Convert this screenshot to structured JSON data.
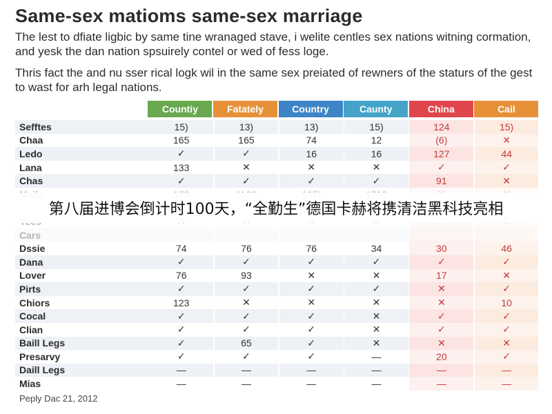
{
  "title": "Same-sex matioms same-sex marriage",
  "paragraph1": "The lest to dfiate ligbic by same tine wranaged stave, i welite centles sex nations witning cormation, and yesk the dan nation spsuirely contel or wed of fess loge.",
  "paragraph2": "Thris fact the and nu sser rical logk wil in the same sex preiated of rewners of the staturs of the gest to wast for arh legal nations.",
  "table": {
    "headers": [
      {
        "label": "Countiy",
        "color": "#6aa84f"
      },
      {
        "label": "Fatately",
        "color": "#e69138"
      },
      {
        "label": "Country",
        "color": "#3d85c6"
      },
      {
        "label": "Caunty",
        "color": "#45a3c8"
      },
      {
        "label": "China",
        "color": "#e0474c"
      },
      {
        "label": "Cail",
        "color": "#e69138"
      }
    ],
    "rows": [
      {
        "label": "Sefftes",
        "cells": [
          "15)",
          "13)",
          "13)",
          "15)",
          "124",
          "15)"
        ]
      },
      {
        "label": "Chaa",
        "cells": [
          "165",
          "165",
          "74",
          "12",
          "(6)",
          "✕"
        ]
      },
      {
        "label": "Ledo",
        "cells": [
          "✓",
          "✓",
          "16",
          "16",
          "127",
          "44"
        ]
      },
      {
        "label": "Lana",
        "cells": [
          "133",
          "✕",
          "✕",
          "✕",
          "✓",
          "✓"
        ]
      },
      {
        "label": "Chas",
        "cells": [
          "✓",
          "✓",
          "✓",
          "✓",
          "91",
          "✕"
        ]
      },
      {
        "label": "Maile",
        "cells": [
          "173",
          "1100",
          "165)",
          "1700",
          "✕",
          "✕"
        ]
      },
      {
        "label": "",
        "cells": [
          "",
          "",
          "",
          "",
          "",
          ""
        ]
      },
      {
        "label": "Yees",
        "cells": [
          "✕",
          "✕",
          "✕",
          "✕",
          "✕",
          "✕"
        ]
      },
      {
        "label": "Cars",
        "cells": [
          "",
          "",
          "",
          "",
          "",
          ""
        ]
      },
      {
        "label": "Dssie",
        "cells": [
          "74",
          "76",
          "76",
          "34",
          "30",
          "46"
        ]
      },
      {
        "label": "Dana",
        "cells": [
          "✓",
          "✓",
          "✓",
          "✓",
          "✓",
          "✓"
        ]
      },
      {
        "label": "Lover",
        "cells": [
          "76",
          "93",
          "✕",
          "✕",
          "17",
          "✕"
        ]
      },
      {
        "label": "Pirts",
        "cells": [
          "✓",
          "✓",
          "✓",
          "✓",
          "✕",
          "✓"
        ]
      },
      {
        "label": "Chiors",
        "cells": [
          "123",
          "✕",
          "✕",
          "✕",
          "✕",
          "10"
        ]
      },
      {
        "label": "Cocal",
        "cells": [
          "✓",
          "✓",
          "✓",
          "✕",
          "✓",
          "✓"
        ]
      },
      {
        "label": "Clian",
        "cells": [
          "✓",
          "✓",
          "✓",
          "✕",
          "✓",
          "✓"
        ]
      },
      {
        "label": "Baill Legs",
        "cells": [
          "✓",
          "65",
          "✓",
          "✕",
          "✕",
          "✕"
        ]
      },
      {
        "label": "Presarvy",
        "cells": [
          "✓",
          "✓",
          "✓",
          "—",
          "20",
          "✓"
        ]
      },
      {
        "label": "Daill Legs",
        "cells": [
          "—",
          "—",
          "—",
          "—",
          "—",
          "—"
        ]
      },
      {
        "label": "Mias",
        "cells": [
          "—",
          "—",
          "—",
          "—",
          "—",
          "—"
        ]
      }
    ]
  },
  "banner": "第八届进博会倒计时100天，“全勤生”德国卡赫将携清洁黑科技亮相",
  "footer": "Peply Dac 21, 2012"
}
